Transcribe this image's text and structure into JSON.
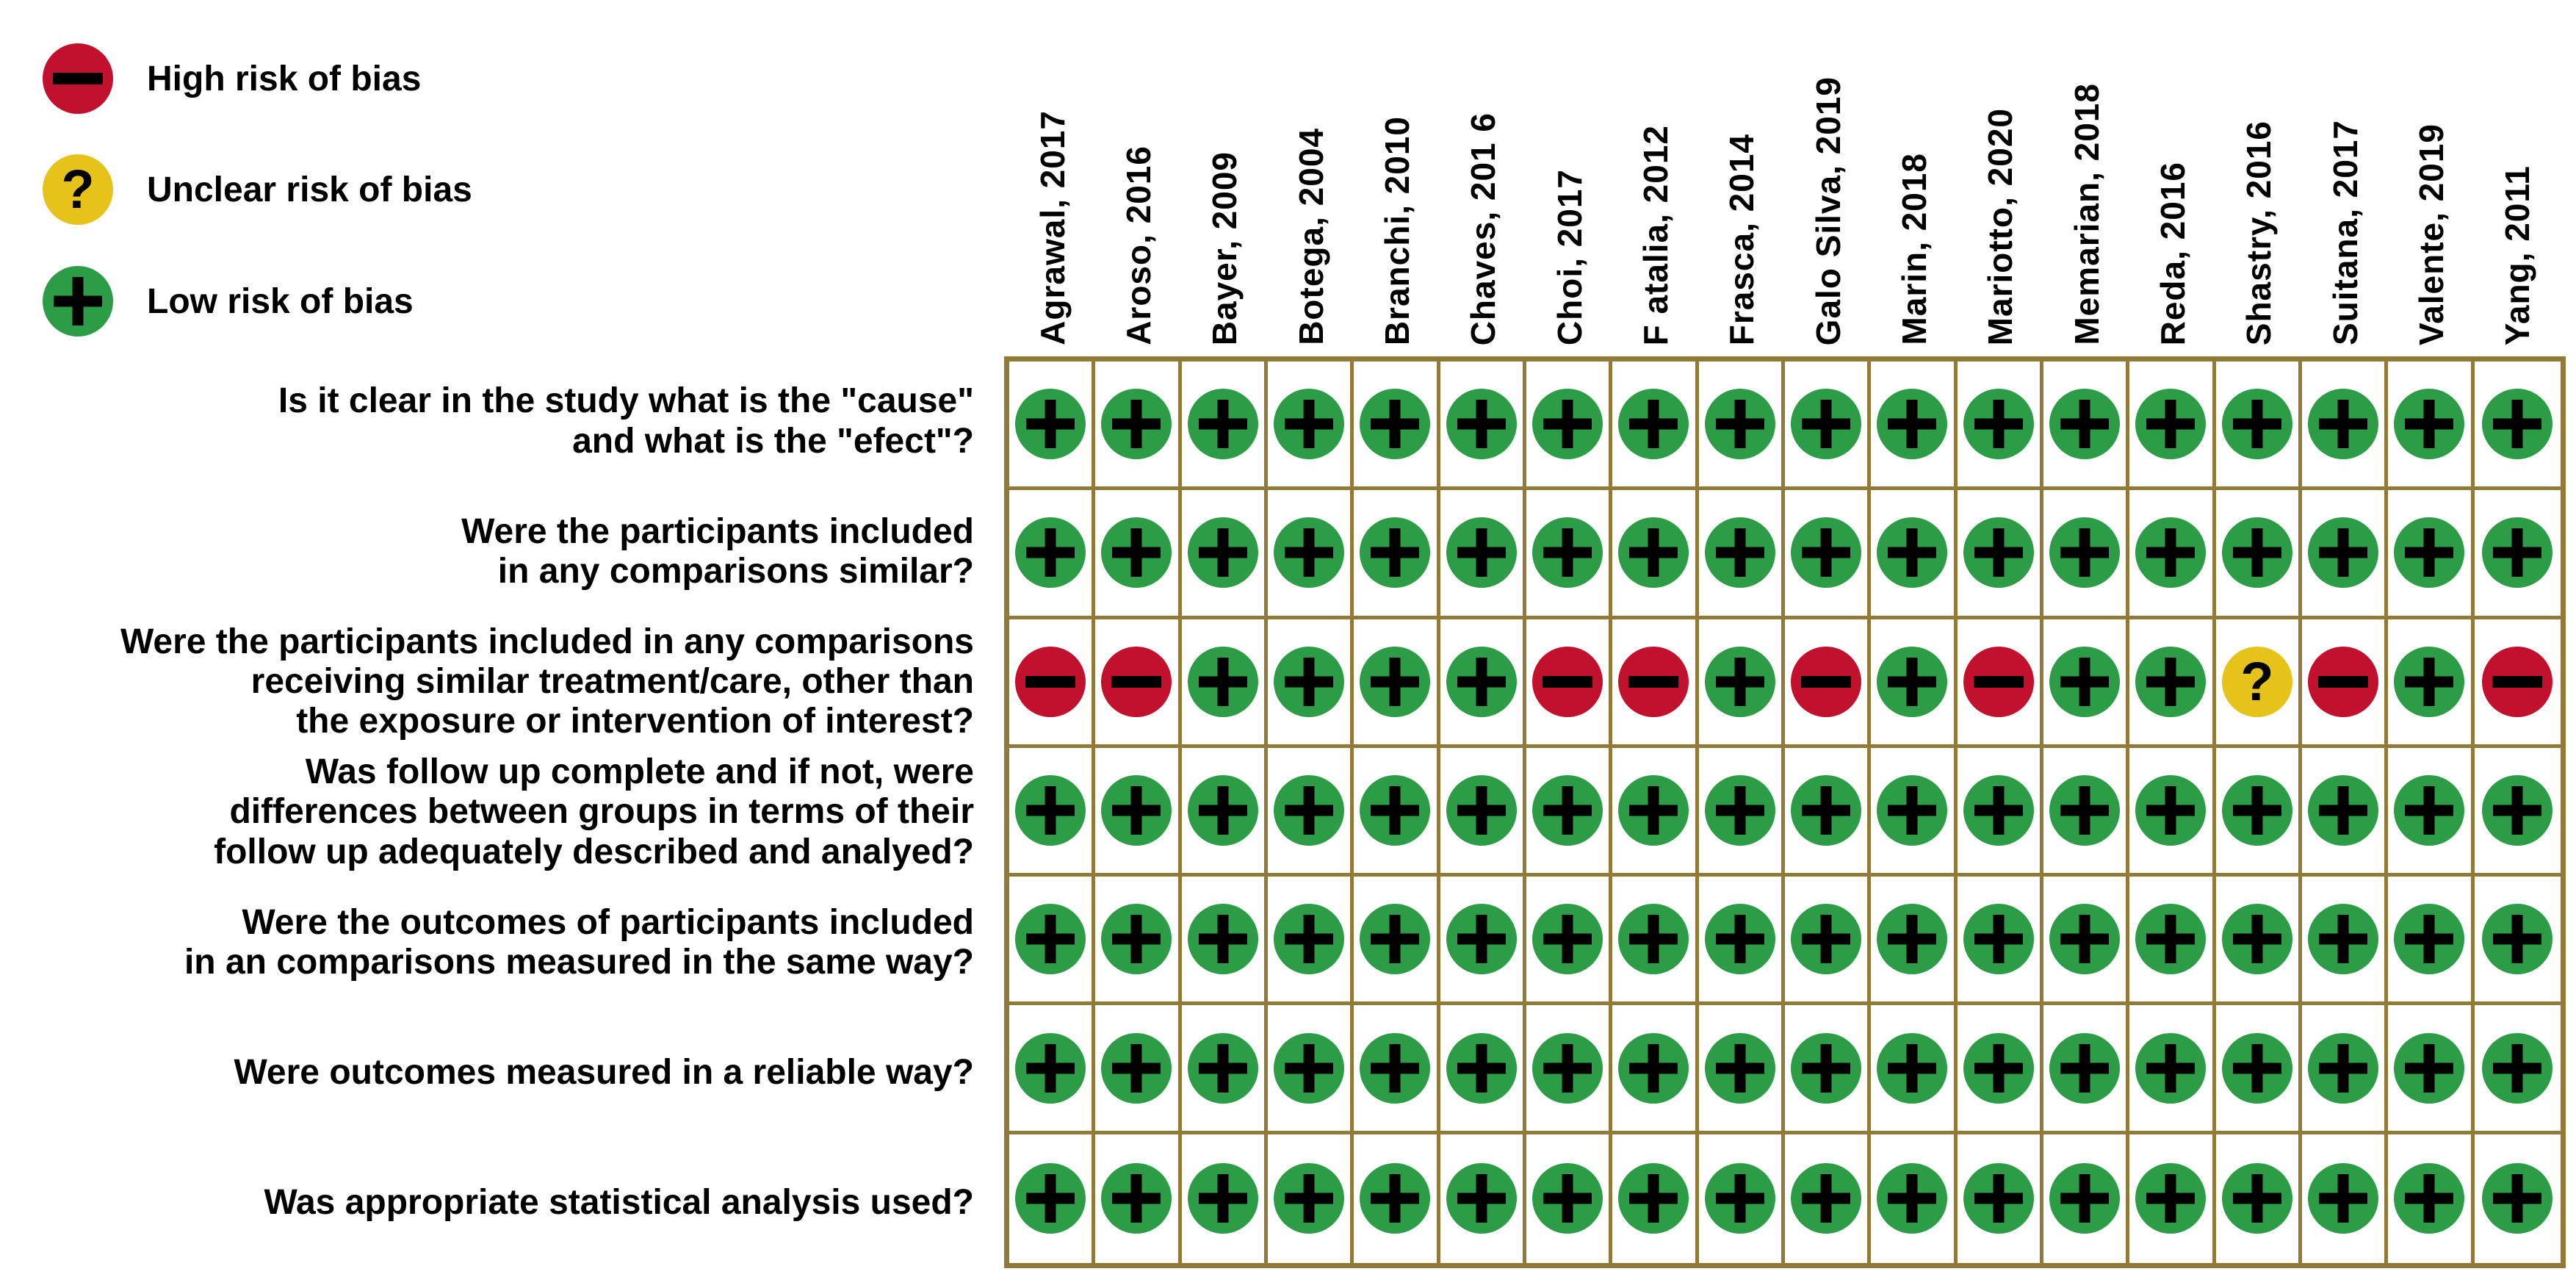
{
  "legend": {
    "items": [
      {
        "id": "high",
        "label": "High risk of bias",
        "symbol": "-"
      },
      {
        "id": "unclear",
        "label": "Unclear risk of bias",
        "symbol": "?"
      },
      {
        "id": "low",
        "label": "Low risk of bias",
        "symbol": "+"
      }
    ]
  },
  "colors": {
    "high": "#c2112f",
    "unclear": "#e6c31b",
    "low": "#2d9c47",
    "grid": "#8f7a38",
    "symbol": "#000000",
    "background": "#ffffff"
  },
  "chart_data": {
    "type": "heatmap",
    "title": "Risk of bias assessment matrix",
    "x_labels": [
      "Agrawal, 2017",
      "Aroso, 2016",
      "Bayer, 2009",
      "Botega, 2004",
      "Branchi, 2010",
      "Chaves, 201 6",
      "Choi, 2017",
      "F atalia, 2012",
      "Frasca, 2014",
      "Galo Silva, 2019",
      "Marin, 2018",
      "Mariotto, 2020",
      "Memarian, 2018",
      "Reda, 2016",
      "Shastry, 2016",
      "Suitana, 2017",
      "Valente, 2019",
      "Yang, 2011"
    ],
    "y_labels": [
      "Is it clear in the study what is the \"cause\"\nand what is the \"efect\"?",
      "Were the participants included\nin any comparisons similar?",
      "Were the participants included in any comparisons\nreceiving similar treatment/care, other than\nthe exposure or intervention of interest?",
      "Was follow up complete and if not, were\ndifferences between groups in terms of their\nfollow up adequately described and analyed?",
      "Were the outcomes of participants included\nin an comparisons measured in the same way?",
      "Were outcomes measured in a reliable way?",
      "Was appropriate statistical analysis used?"
    ],
    "values": [
      [
        "+",
        "+",
        "+",
        "+",
        "+",
        "+",
        "+",
        "+",
        "+",
        "+",
        "+",
        "+",
        "+",
        "+",
        "+",
        "+",
        "+",
        "+"
      ],
      [
        "+",
        "+",
        "+",
        "+",
        "+",
        "+",
        "+",
        "+",
        "+",
        "+",
        "+",
        "+",
        "+",
        "+",
        "+",
        "+",
        "+",
        "+"
      ],
      [
        "-",
        "-",
        "+",
        "+",
        "+",
        "+",
        "-",
        "-",
        "+",
        "-",
        "+",
        "-",
        "+",
        "+",
        "?",
        "-",
        "+",
        "-"
      ],
      [
        "+",
        "+",
        "+",
        "+",
        "+",
        "+",
        "+",
        "+",
        "+",
        "+",
        "+",
        "+",
        "+",
        "+",
        "+",
        "+",
        "+",
        "+"
      ],
      [
        "+",
        "+",
        "+",
        "+",
        "+",
        "+",
        "+",
        "+",
        "+",
        "+",
        "+",
        "+",
        "+",
        "+",
        "+",
        "+",
        "+",
        "+"
      ],
      [
        "+",
        "+",
        "+",
        "+",
        "+",
        "+",
        "+",
        "+",
        "+",
        "+",
        "+",
        "+",
        "+",
        "+",
        "+",
        "+",
        "+",
        "+"
      ],
      [
        "+",
        "+",
        "+",
        "+",
        "+",
        "+",
        "+",
        "+",
        "+",
        "+",
        "+",
        "+",
        "+",
        "+",
        "+",
        "+",
        "+",
        "+"
      ]
    ],
    "value_legend": {
      "+": "Low risk of bias",
      "-": "High risk of bias",
      "?": "Unclear risk of bias"
    },
    "legend_position": "top-left",
    "grid": true
  }
}
